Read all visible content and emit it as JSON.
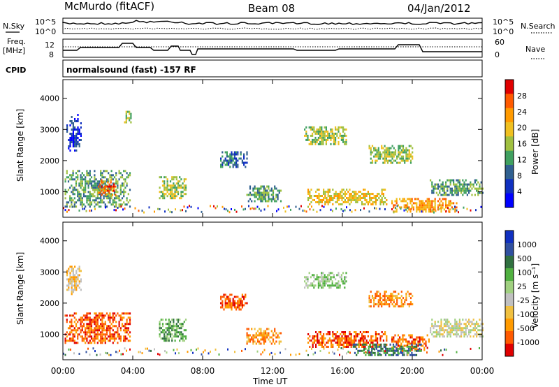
{
  "header": {
    "station": "McMurdo (fitACF)",
    "beam": "Beam 08",
    "date": "04/Jan/2012"
  },
  "top_panels": {
    "left_labels": {
      "nsky": "N.Sky",
      "freq_line1": "Freq.",
      "freq_line2": "[MHz]",
      "cpid": "CPID"
    },
    "right_labels": {
      "nsearch": "N.Search",
      "nave": "Nave"
    },
    "noise_ticks_left": [
      "10^5",
      "10^0"
    ],
    "noise_ticks_right": [
      "10^5",
      "10^0"
    ],
    "freq_ticks": [
      "12",
      "8"
    ],
    "nave_ticks": [
      "60",
      "0"
    ],
    "cpid_text": "normalsound (fast) -157 RF"
  },
  "chart_data": [
    {
      "type": "heatmap",
      "panel": "power",
      "ylabel": "Slant Range [km]",
      "y_ticks": [
        "4000",
        "3000",
        "2000",
        "1000"
      ],
      "ylim": [
        180,
        4600
      ],
      "x_ticks": [
        "00:00",
        "04:00",
        "08:00",
        "12:00",
        "16:00",
        "20:00",
        "00:00"
      ],
      "colorbar": {
        "label": "Power [dB]",
        "ticks": [
          "28",
          "24",
          "20",
          "16",
          "12",
          "8",
          "4"
        ],
        "colors": [
          "#e00000",
          "#ff5a00",
          "#ff9a00",
          "#f0c020",
          "#a0c040",
          "#40a060",
          "#306090",
          "#1030c0",
          "#0000ff"
        ]
      },
      "blobs": [
        {
          "t0": 0.2,
          "t1": 1.0,
          "r0": 2300,
          "r1": 3500,
          "level": 7
        },
        {
          "t0": 0.1,
          "t1": 3.8,
          "r0": 500,
          "r1": 1700,
          "level": 5
        },
        {
          "t0": 2.0,
          "t1": 3.0,
          "r0": 900,
          "r1": 1400,
          "level": 1
        },
        {
          "t0": 3.5,
          "t1": 3.9,
          "r0": 3200,
          "r1": 3600,
          "level": 4
        },
        {
          "t0": 5.5,
          "t1": 7.0,
          "r0": 800,
          "r1": 1500,
          "level": 4
        },
        {
          "t0": 9.0,
          "t1": 10.5,
          "r0": 1800,
          "r1": 2300,
          "level": 6
        },
        {
          "t0": 10.5,
          "t1": 12.5,
          "r0": 700,
          "r1": 1200,
          "level": 5
        },
        {
          "t0": 13.8,
          "t1": 16.2,
          "r0": 2500,
          "r1": 3100,
          "level": 4
        },
        {
          "t0": 14.0,
          "t1": 18.5,
          "r0": 600,
          "r1": 1100,
          "level": 3
        },
        {
          "t0": 17.5,
          "t1": 20.0,
          "r0": 1900,
          "r1": 2500,
          "level": 4
        },
        {
          "t0": 18.8,
          "t1": 22.5,
          "r0": 350,
          "r1": 800,
          "level": 2
        },
        {
          "t0": 21.0,
          "t1": 24.0,
          "r0": 900,
          "r1": 1400,
          "level": 5
        }
      ]
    },
    {
      "type": "heatmap",
      "panel": "velocity",
      "ylabel": "Slant Range [km]",
      "y_ticks": [
        "4000",
        "3000",
        "2000",
        "1000"
      ],
      "ylim": [
        180,
        4600
      ],
      "x_ticks": [
        "00:00",
        "04:00",
        "08:00",
        "12:00",
        "16:00",
        "20:00",
        "00:00"
      ],
      "xlabel": "Time UT",
      "colorbar": {
        "label": "Velocity [m s⁻¹]",
        "ticks": [
          "1000",
          "500",
          "100",
          "25",
          "-25",
          "-100",
          "-500",
          "-1000"
        ],
        "colors": [
          "#1030c0",
          "#3050a0",
          "#307040",
          "#50b040",
          "#a0d080",
          "#c0c0c0",
          "#f0c040",
          "#ff9a00",
          "#ff5a00",
          "#e00000"
        ]
      },
      "blobs": [
        {
          "t0": 0.2,
          "t1": 1.0,
          "r0": 2300,
          "r1": 3200,
          "level": 6
        },
        {
          "t0": 0.1,
          "t1": 3.8,
          "r0": 700,
          "r1": 1700,
          "level": 8
        },
        {
          "t0": 5.5,
          "t1": 7.0,
          "r0": 800,
          "r1": 1500,
          "level": 3
        },
        {
          "t0": 9.0,
          "t1": 10.5,
          "r0": 1800,
          "r1": 2300,
          "level": 8
        },
        {
          "t0": 10.5,
          "t1": 12.5,
          "r0": 700,
          "r1": 1200,
          "level": 7
        },
        {
          "t0": 13.8,
          "t1": 16.2,
          "r0": 2500,
          "r1": 3000,
          "level": 4
        },
        {
          "t0": 14.0,
          "t1": 18.5,
          "r0": 600,
          "r1": 1100,
          "level": 8
        },
        {
          "t0": 17.5,
          "t1": 20.0,
          "r0": 1900,
          "r1": 2400,
          "level": 7
        },
        {
          "t0": 18.8,
          "t1": 21.0,
          "r0": 500,
          "r1": 1000,
          "level": 8
        },
        {
          "t0": 21.0,
          "t1": 24.0,
          "r0": 900,
          "r1": 1500,
          "level": 5
        },
        {
          "t0": 16.5,
          "t1": 20.5,
          "r0": 300,
          "r1": 700,
          "level": 2
        }
      ]
    }
  ]
}
